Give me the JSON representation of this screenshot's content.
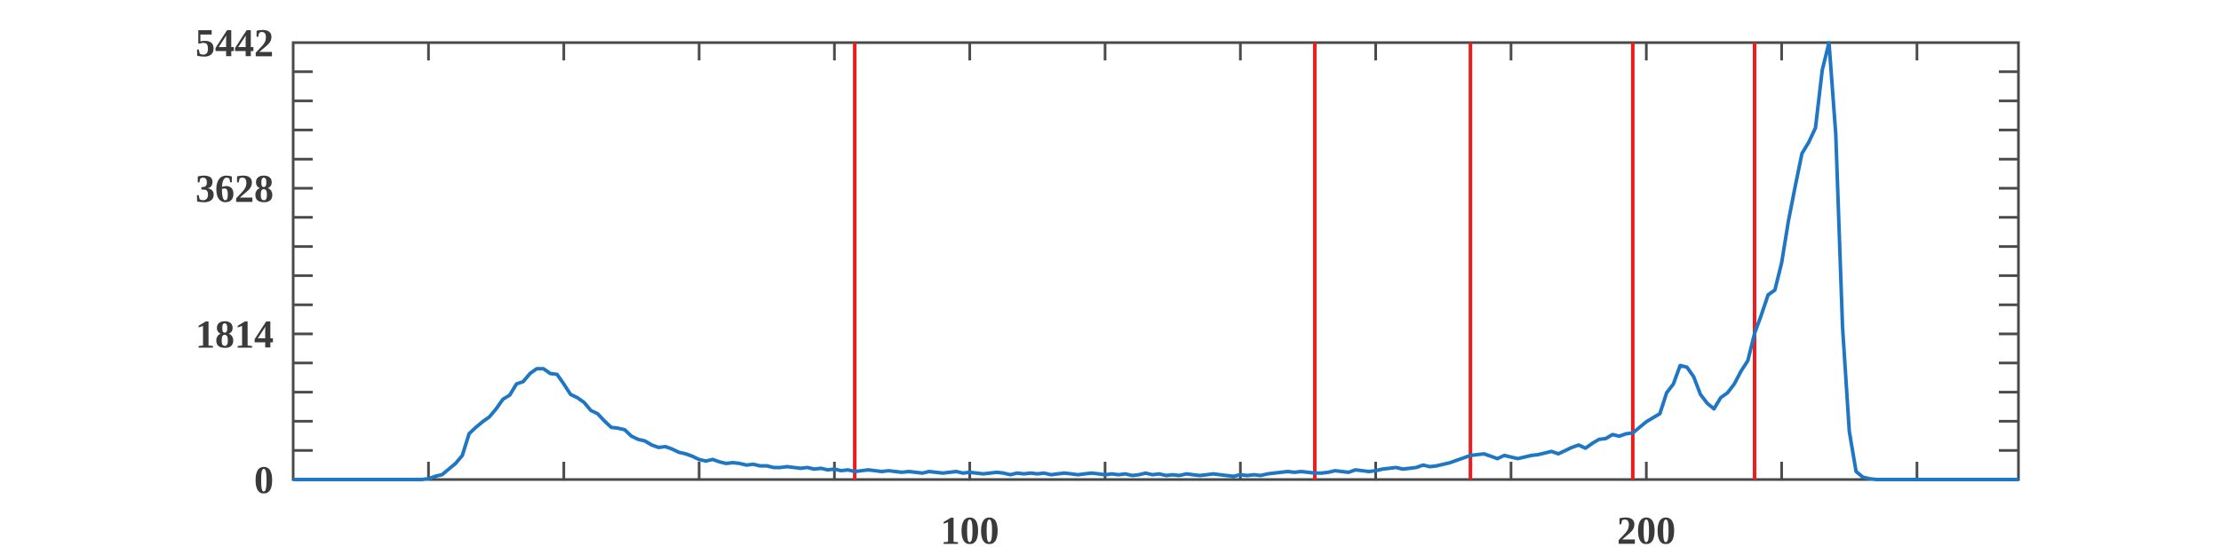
{
  "chart_data": {
    "type": "line",
    "title": "",
    "xlabel": "",
    "ylabel": "",
    "xlim": [
      0,
      255
    ],
    "ylim": [
      0,
      5442
    ],
    "x_ticks": [
      20,
      40,
      60,
      80,
      100,
      120,
      140,
      160,
      180,
      200,
      220,
      240
    ],
    "x_tick_labels": [
      {
        "value": 100,
        "label": "100"
      },
      {
        "value": 200,
        "label": "200"
      }
    ],
    "y_ticks": [
      0,
      362.8,
      725.6,
      1088.4,
      1451.2,
      1814,
      2176.8,
      2539.6,
      2902.4,
      3265.2,
      3628,
      3990.8,
      4353.6,
      4716.4,
      5079.2,
      5442
    ],
    "y_tick_labels": [
      {
        "value": 0,
        "label": "0"
      },
      {
        "value": 1814,
        "label": "1814"
      },
      {
        "value": 3628,
        "label": "3628"
      },
      {
        "value": 5442,
        "label": "5442"
      }
    ],
    "grid": false,
    "line_color": "#1f77c4",
    "threshold_color": "#ee1c1c",
    "axis_color": "#4a4a4a",
    "vertical_lines": [
      83,
      151,
      174,
      198,
      216
    ],
    "series": [
      {
        "points": [
          [
            0,
            0
          ],
          [
            10,
            0
          ],
          [
            19,
            0
          ],
          [
            20,
            10
          ],
          [
            21,
            40
          ],
          [
            22,
            60
          ],
          [
            23,
            130
          ],
          [
            24,
            200
          ],
          [
            25,
            300
          ],
          [
            26,
            570
          ],
          [
            27,
            650
          ],
          [
            28,
            720
          ],
          [
            29,
            780
          ],
          [
            30,
            880
          ],
          [
            31,
            1000
          ],
          [
            32,
            1050
          ],
          [
            33,
            1190
          ],
          [
            34,
            1220
          ],
          [
            35,
            1320
          ],
          [
            36,
            1380
          ],
          [
            37,
            1380
          ],
          [
            38,
            1320
          ],
          [
            39,
            1310
          ],
          [
            40,
            1190
          ],
          [
            41,
            1060
          ],
          [
            42,
            1020
          ],
          [
            43,
            960
          ],
          [
            44,
            860
          ],
          [
            45,
            820
          ],
          [
            46,
            730
          ],
          [
            47,
            650
          ],
          [
            48,
            640
          ],
          [
            49,
            620
          ],
          [
            50,
            540
          ],
          [
            51,
            500
          ],
          [
            52,
            480
          ],
          [
            53,
            430
          ],
          [
            54,
            400
          ],
          [
            55,
            410
          ],
          [
            56,
            380
          ],
          [
            57,
            340
          ],
          [
            58,
            320
          ],
          [
            59,
            290
          ],
          [
            60,
            250
          ],
          [
            61,
            230
          ],
          [
            62,
            250
          ],
          [
            63,
            220
          ],
          [
            64,
            200
          ],
          [
            65,
            210
          ],
          [
            66,
            200
          ],
          [
            67,
            180
          ],
          [
            68,
            190
          ],
          [
            69,
            170
          ],
          [
            70,
            170
          ],
          [
            71,
            150
          ],
          [
            72,
            150
          ],
          [
            73,
            160
          ],
          [
            74,
            150
          ],
          [
            75,
            140
          ],
          [
            76,
            150
          ],
          [
            77,
            130
          ],
          [
            78,
            140
          ],
          [
            79,
            120
          ],
          [
            80,
            130
          ],
          [
            81,
            110
          ],
          [
            82,
            120
          ],
          [
            83,
            100
          ],
          [
            84,
            110
          ],
          [
            85,
            120
          ],
          [
            86,
            110
          ],
          [
            87,
            100
          ],
          [
            88,
            110
          ],
          [
            89,
            100
          ],
          [
            90,
            90
          ],
          [
            91,
            100
          ],
          [
            92,
            90
          ],
          [
            93,
            80
          ],
          [
            94,
            100
          ],
          [
            95,
            90
          ],
          [
            96,
            80
          ],
          [
            97,
            90
          ],
          [
            98,
            100
          ],
          [
            99,
            80
          ],
          [
            100,
            90
          ],
          [
            101,
            80
          ],
          [
            102,
            70
          ],
          [
            103,
            80
          ],
          [
            104,
            90
          ],
          [
            105,
            80
          ],
          [
            106,
            60
          ],
          [
            107,
            80
          ],
          [
            108,
            70
          ],
          [
            109,
            80
          ],
          [
            110,
            70
          ],
          [
            111,
            80
          ],
          [
            112,
            60
          ],
          [
            113,
            70
          ],
          [
            114,
            80
          ],
          [
            115,
            70
          ],
          [
            116,
            60
          ],
          [
            117,
            70
          ],
          [
            118,
            80
          ],
          [
            119,
            70
          ],
          [
            120,
            60
          ],
          [
            121,
            70
          ],
          [
            122,
            60
          ],
          [
            123,
            70
          ],
          [
            124,
            50
          ],
          [
            125,
            60
          ],
          [
            126,
            80
          ],
          [
            127,
            60
          ],
          [
            128,
            70
          ],
          [
            129,
            50
          ],
          [
            130,
            60
          ],
          [
            131,
            50
          ],
          [
            132,
            70
          ],
          [
            133,
            60
          ],
          [
            134,
            50
          ],
          [
            135,
            60
          ],
          [
            136,
            70
          ],
          [
            137,
            60
          ],
          [
            138,
            50
          ],
          [
            139,
            40
          ],
          [
            140,
            60
          ],
          [
            141,
            50
          ],
          [
            142,
            60
          ],
          [
            143,
            50
          ],
          [
            144,
            70
          ],
          [
            145,
            80
          ],
          [
            146,
            90
          ],
          [
            147,
            100
          ],
          [
            148,
            90
          ],
          [
            149,
            100
          ],
          [
            150,
            90
          ],
          [
            151,
            80
          ],
          [
            152,
            80
          ],
          [
            153,
            90
          ],
          [
            154,
            110
          ],
          [
            155,
            100
          ],
          [
            156,
            90
          ],
          [
            157,
            120
          ],
          [
            158,
            110
          ],
          [
            159,
            100
          ],
          [
            160,
            110
          ],
          [
            161,
            130
          ],
          [
            162,
            140
          ],
          [
            163,
            150
          ],
          [
            164,
            130
          ],
          [
            165,
            140
          ],
          [
            166,
            150
          ],
          [
            167,
            180
          ],
          [
            168,
            160
          ],
          [
            169,
            170
          ],
          [
            170,
            190
          ],
          [
            171,
            210
          ],
          [
            172,
            240
          ],
          [
            173,
            270
          ],
          [
            174,
            300
          ],
          [
            175,
            310
          ],
          [
            176,
            320
          ],
          [
            177,
            290
          ],
          [
            178,
            260
          ],
          [
            179,
            300
          ],
          [
            180,
            280
          ],
          [
            181,
            260
          ],
          [
            182,
            280
          ],
          [
            183,
            300
          ],
          [
            184,
            310
          ],
          [
            185,
            330
          ],
          [
            186,
            350
          ],
          [
            187,
            320
          ],
          [
            188,
            360
          ],
          [
            189,
            400
          ],
          [
            190,
            430
          ],
          [
            191,
            390
          ],
          [
            192,
            450
          ],
          [
            193,
            500
          ],
          [
            194,
            510
          ],
          [
            195,
            560
          ],
          [
            196,
            540
          ],
          [
            197,
            570
          ],
          [
            198,
            580
          ],
          [
            199,
            650
          ],
          [
            200,
            720
          ],
          [
            201,
            770
          ],
          [
            202,
            820
          ],
          [
            203,
            1080
          ],
          [
            204,
            1190
          ],
          [
            205,
            1420
          ],
          [
            206,
            1400
          ],
          [
            207,
            1280
          ],
          [
            208,
            1060
          ],
          [
            209,
            950
          ],
          [
            210,
            880
          ],
          [
            211,
            1020
          ],
          [
            212,
            1080
          ],
          [
            213,
            1190
          ],
          [
            214,
            1350
          ],
          [
            215,
            1480
          ],
          [
            216,
            1820
          ],
          [
            217,
            2050
          ],
          [
            218,
            2300
          ],
          [
            219,
            2360
          ],
          [
            220,
            2700
          ],
          [
            221,
            3220
          ],
          [
            222,
            3650
          ],
          [
            223,
            4060
          ],
          [
            224,
            4200
          ],
          [
            225,
            4380
          ],
          [
            226,
            5100
          ],
          [
            227,
            5442
          ],
          [
            228,
            4300
          ],
          [
            229,
            1900
          ],
          [
            230,
            600
          ],
          [
            231,
            100
          ],
          [
            232,
            30
          ],
          [
            233,
            10
          ],
          [
            234,
            0
          ],
          [
            240,
            0
          ],
          [
            255,
            0
          ]
        ]
      }
    ]
  }
}
